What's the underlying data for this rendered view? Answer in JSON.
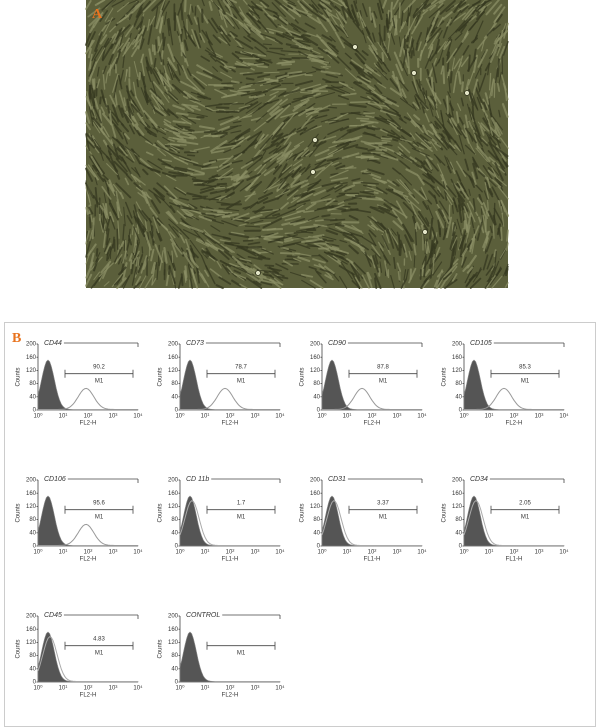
{
  "figure": {
    "panel_a": {
      "label": "A"
    },
    "panel_b": {
      "label": "B",
      "y_ticks": [
        "0",
        "40",
        "80",
        "120",
        "160",
        "200"
      ],
      "x_ticks": [
        "10⁰",
        "10¹",
        "10²",
        "10³",
        "10⁴"
      ],
      "y_label": "Counts",
      "plots": [
        {
          "title": "CD44",
          "percent": "90.2",
          "gate": "M1",
          "x_label": "FL2-H"
        },
        {
          "title": "CD73",
          "percent": "78.7",
          "gate": "M1",
          "x_label": "FL2-H"
        },
        {
          "title": "CD90",
          "percent": "87.8",
          "gate": "M1",
          "x_label": "FL2-H"
        },
        {
          "title": "CD105",
          "percent": "85.3",
          "gate": "M1",
          "x_label": "FL2-H"
        },
        {
          "title": "CD106",
          "percent": "95.6",
          "gate": "M1",
          "x_label": "FL2-H"
        },
        {
          "title": "CD 11b",
          "percent": "1.7",
          "gate": "M1",
          "x_label": "FL1-H"
        },
        {
          "title": "CD31",
          "percent": "3.37",
          "gate": "M1",
          "x_label": "FL1-H"
        },
        {
          "title": "CD34",
          "percent": "2.05",
          "gate": "M1",
          "x_label": "FL1-H"
        },
        {
          "title": "CD45",
          "percent": "4.83",
          "gate": "M1",
          "x_label": "FL2-H"
        },
        {
          "title": "CONTROL",
          "gate": "M1",
          "x_label": "FL2-H"
        }
      ]
    }
  }
}
